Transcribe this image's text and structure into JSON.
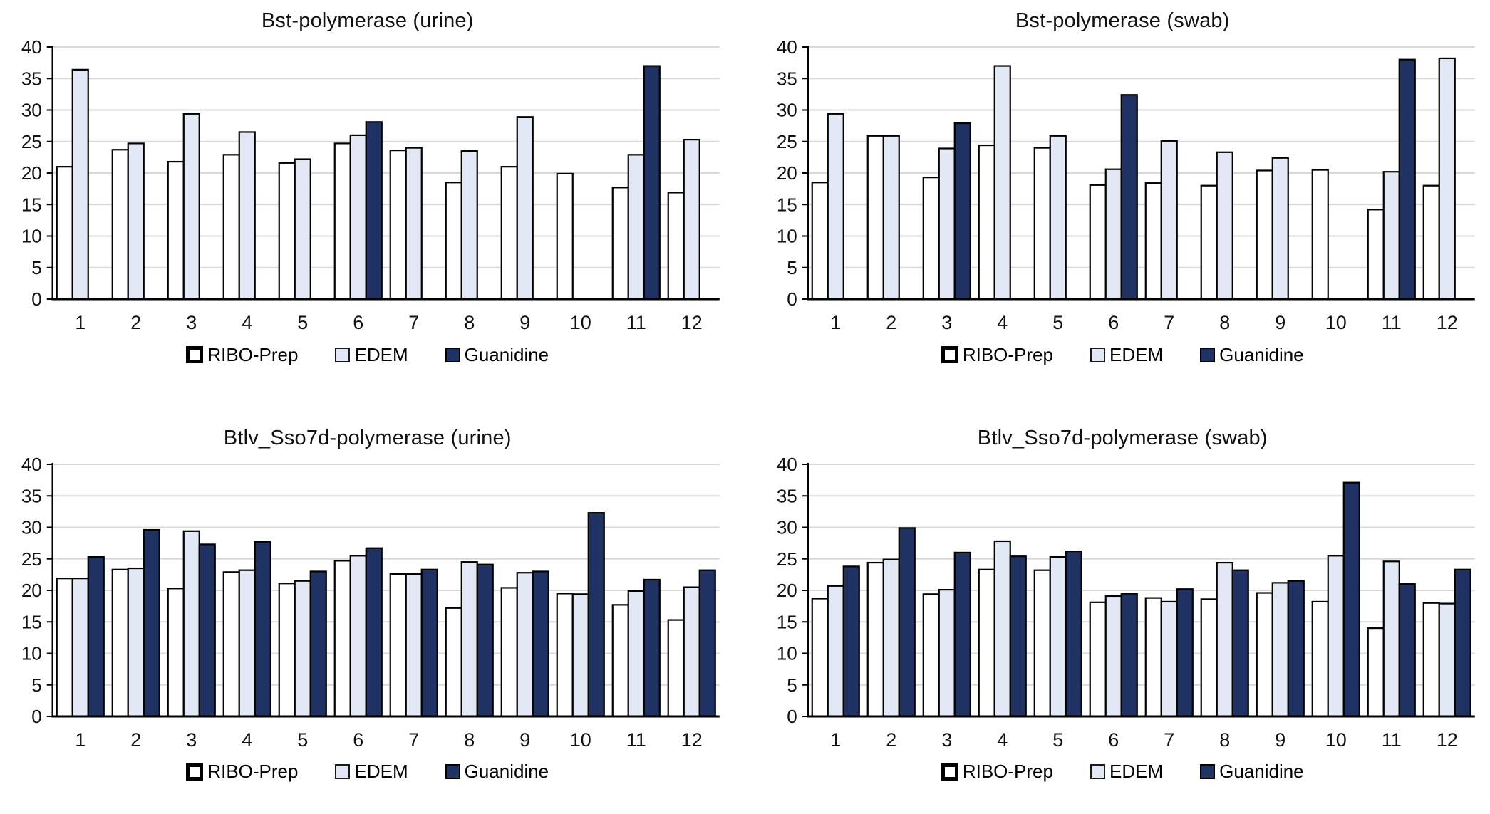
{
  "legend": {
    "items": [
      {
        "label": "RIBO-Prep",
        "color": "#ffffff",
        "border": "#000000"
      },
      {
        "label": "EDEM",
        "color": "#e2e8f5",
        "border": "#1a1a1a"
      },
      {
        "label": "Guanidine",
        "color": "#203263",
        "border": "#000000"
      }
    ]
  },
  "axis_style": {
    "grid_color": "#d9d9d9",
    "axis_color": "#000000",
    "bar_stroke": "#000000"
  },
  "chart_data": [
    {
      "type": "bar",
      "title": "Bst-polymerase (urine)",
      "categories": [
        "1",
        "2",
        "3",
        "4",
        "5",
        "6",
        "7",
        "8",
        "9",
        "10",
        "11",
        "12"
      ],
      "series": [
        {
          "name": "RIBO-Prep",
          "values": [
            21.0,
            23.7,
            21.8,
            22.9,
            21.6,
            24.7,
            23.6,
            18.5,
            21.0,
            19.9,
            17.7,
            16.9
          ]
        },
        {
          "name": "EDEM",
          "values": [
            36.4,
            24.7,
            29.4,
            26.5,
            22.2,
            26.0,
            24.0,
            23.5,
            28.9,
            null,
            22.9,
            25.3
          ]
        },
        {
          "name": "Guanidine",
          "values": [
            null,
            null,
            null,
            null,
            null,
            28.1,
            null,
            null,
            null,
            null,
            37.0,
            null
          ]
        }
      ],
      "ylim": [
        0,
        40
      ],
      "yticks": [
        0,
        5,
        10,
        15,
        20,
        25,
        30,
        35,
        40
      ],
      "grid": true,
      "legend_position": "bottom"
    },
    {
      "type": "bar",
      "title": "Bst-polymerase (swab)",
      "categories": [
        "1",
        "2",
        "3",
        "4",
        "5",
        "6",
        "7",
        "8",
        "9",
        "10",
        "11",
        "12"
      ],
      "series": [
        {
          "name": "RIBO-Prep",
          "values": [
            18.5,
            25.9,
            19.3,
            24.4,
            24.0,
            18.1,
            18.4,
            18.0,
            20.4,
            20.5,
            14.2,
            18.0
          ]
        },
        {
          "name": "EDEM",
          "values": [
            29.4,
            25.9,
            23.9,
            37.0,
            25.9,
            20.6,
            25.1,
            23.3,
            22.4,
            null,
            20.2,
            38.2
          ]
        },
        {
          "name": "Guanidine",
          "values": [
            null,
            null,
            27.9,
            null,
            null,
            32.4,
            null,
            null,
            null,
            null,
            38.0,
            null
          ]
        }
      ],
      "ylim": [
        0,
        40
      ],
      "yticks": [
        0,
        5,
        10,
        15,
        20,
        25,
        30,
        35,
        40
      ],
      "grid": true,
      "legend_position": "bottom"
    },
    {
      "type": "bar",
      "title": "Btlv_Sso7d-polymerase (urine)",
      "categories": [
        "1",
        "2",
        "3",
        "4",
        "5",
        "6",
        "7",
        "8",
        "9",
        "10",
        "11",
        "12"
      ],
      "series": [
        {
          "name": "RIBO-Prep",
          "values": [
            21.9,
            23.3,
            20.3,
            22.9,
            21.1,
            24.7,
            22.6,
            17.2,
            20.4,
            19.5,
            17.7,
            15.3
          ]
        },
        {
          "name": "EDEM",
          "values": [
            21.9,
            23.5,
            29.4,
            23.2,
            21.5,
            25.5,
            22.6,
            24.5,
            22.8,
            19.4,
            19.9,
            20.5
          ]
        },
        {
          "name": "Guanidine",
          "values": [
            25.3,
            29.6,
            27.3,
            27.7,
            23.0,
            26.7,
            23.3,
            24.1,
            23.0,
            32.3,
            21.7,
            23.2
          ]
        }
      ],
      "ylim": [
        0,
        40
      ],
      "yticks": [
        0,
        5,
        10,
        15,
        20,
        25,
        30,
        35,
        40
      ],
      "grid": true,
      "legend_position": "bottom"
    },
    {
      "type": "bar",
      "title": "Btlv_Sso7d-polymerase (swab)",
      "categories": [
        "1",
        "2",
        "3",
        "4",
        "5",
        "6",
        "7",
        "8",
        "9",
        "10",
        "11",
        "12"
      ],
      "series": [
        {
          "name": "RIBO-Prep",
          "values": [
            18.7,
            24.4,
            19.4,
            23.3,
            23.2,
            18.1,
            18.8,
            18.6,
            19.6,
            18.2,
            14.0,
            18.0
          ]
        },
        {
          "name": "EDEM",
          "values": [
            20.7,
            24.9,
            20.1,
            27.8,
            25.3,
            19.1,
            18.2,
            24.4,
            21.2,
            25.5,
            24.6,
            17.9
          ]
        },
        {
          "name": "Guanidine",
          "values": [
            23.8,
            29.9,
            26.0,
            25.4,
            26.2,
            19.5,
            20.2,
            23.2,
            21.5,
            37.1,
            21.0,
            23.3
          ]
        }
      ],
      "ylim": [
        0,
        40
      ],
      "yticks": [
        0,
        5,
        10,
        15,
        20,
        25,
        30,
        35,
        40
      ],
      "grid": true,
      "legend_position": "bottom"
    }
  ]
}
